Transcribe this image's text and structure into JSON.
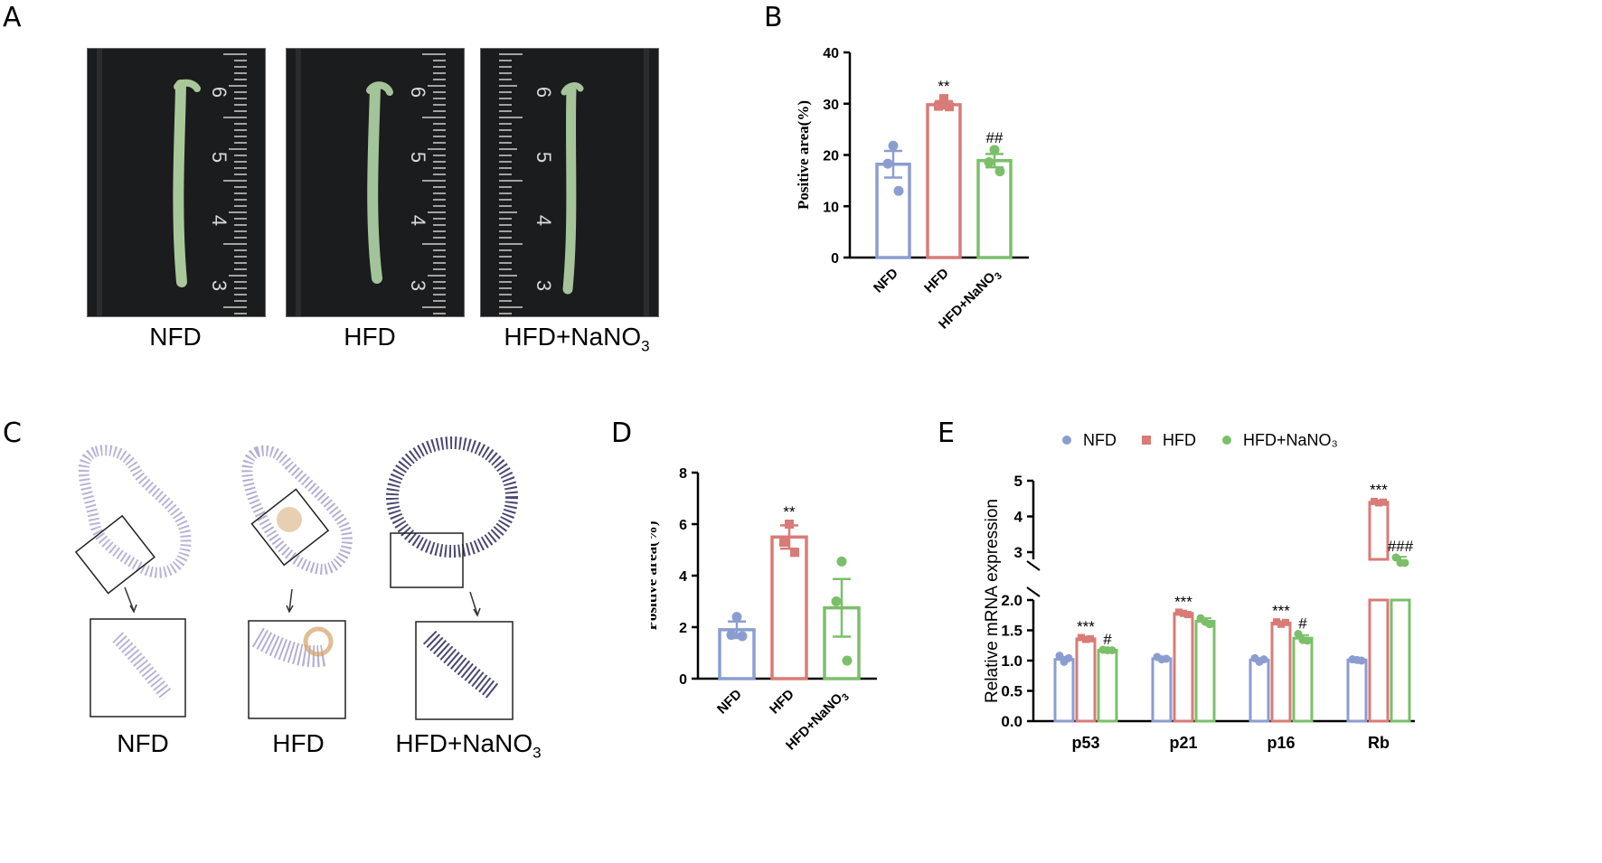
{
  "panels": {
    "a": "A",
    "b": "B",
    "c": "C",
    "d": "D",
    "e": "E"
  },
  "panel_a": {
    "groups": [
      "NFD",
      "HFD",
      "HFD+NaNO"
    ],
    "subscript": "3",
    "ruler_labels": [
      [
        "6",
        "5",
        "4",
        "3"
      ],
      [
        "6",
        "5",
        "4",
        "3"
      ],
      [
        "6",
        "5",
        "4",
        "3"
      ]
    ]
  },
  "panel_c": {
    "groups": [
      "NFD",
      "HFD",
      "HFD+NaNO"
    ],
    "subscript": "3"
  },
  "colors": {
    "NFD": "#8b9dd0",
    "HFD": "#d97b77",
    "HFD_NaNO3": "#7bbf6a"
  },
  "chart_data": [
    {
      "id": "B",
      "type": "bar",
      "categories": [
        "NFD",
        "HFD",
        "HFD+NaNO"
      ],
      "category_subscript": [
        "",
        "",
        "3"
      ],
      "values": [
        18.2,
        29.8,
        18.9
      ],
      "errors": [
        2.6,
        0.7,
        1.3
      ],
      "points": [
        [
          21.8,
          18.3,
          13.0
        ],
        [
          31.0,
          29.5,
          29.4
        ],
        [
          21.0,
          18.6,
          16.8
        ]
      ],
      "annotations": [
        "",
        "**",
        "##"
      ],
      "ylabel": "Positive area(%)",
      "ylim": [
        0,
        40
      ],
      "yticks": [
        0,
        10,
        20,
        30,
        40
      ]
    },
    {
      "id": "D",
      "type": "bar",
      "categories": [
        "NFD",
        "HFD",
        "HFD+NaNO"
      ],
      "category_subscript": [
        "",
        "",
        "3"
      ],
      "values": [
        1.9,
        5.5,
        2.75
      ],
      "errors": [
        0.32,
        0.45,
        1.12
      ],
      "points": [
        [
          2.4,
          1.7,
          1.65
        ],
        [
          6.0,
          5.3,
          4.9
        ],
        [
          4.55,
          3.0,
          0.7
        ]
      ],
      "annotations": [
        "",
        "**",
        ""
      ],
      "ylabel": "Positive area(%)",
      "ylim": [
        0,
        8
      ],
      "yticks": [
        0,
        2,
        4,
        6,
        8
      ]
    },
    {
      "id": "E",
      "type": "bar",
      "categories": [
        "p53",
        "p21",
        "p16",
        "Rb"
      ],
      "series": [
        {
          "name": "NFD",
          "values": [
            1.02,
            1.03,
            1.01,
            1.01
          ],
          "errors": [
            0.04,
            0.02,
            0.03,
            0.01
          ],
          "points": [
            [
              1.08,
              0.98,
              1.04
            ],
            [
              1.06,
              1.02,
              1.03
            ],
            [
              1.04,
              0.98,
              1.02
            ],
            [
              1.02,
              1.01,
              1.0
            ]
          ]
        },
        {
          "name": "HFD",
          "values": [
            1.36,
            1.78,
            1.62,
            4.4
          ],
          "errors": [
            0.03,
            0.02,
            0.03,
            0.05
          ],
          "points": [
            [
              1.38,
              1.35,
              1.36
            ],
            [
              1.8,
              1.78,
              1.76
            ],
            [
              1.64,
              1.6,
              1.63
            ],
            [
              4.42,
              4.38,
              4.4
            ]
          ]
        },
        {
          "name": "HFD+NaNO₃",
          "values": [
            1.17,
            1.65,
            1.37,
            2.75
          ],
          "errors": [
            0.01,
            0.05,
            0.05,
            0.12
          ],
          "points": [
            [
              1.18,
              1.17,
              1.17
            ],
            [
              1.7,
              1.64,
              1.6
            ],
            [
              1.44,
              1.34,
              1.33
            ],
            [
              2.85,
              2.7,
              2.7
            ]
          ]
        }
      ],
      "annotations": {
        "HFD": [
          "***",
          "***",
          "***",
          "***"
        ],
        "HFD+NaNO₃": [
          "#",
          "",
          "#",
          "###"
        ]
      },
      "ylabel": "Relative mRNA expression",
      "ylim": [
        0,
        5
      ],
      "axis_break": [
        2.0,
        2.6
      ],
      "yticks": [
        "0.0",
        "0.5",
        "1.0",
        "1.5",
        "2.0",
        "3",
        "4",
        "5"
      ],
      "legend": {
        "placement": "top",
        "entries": [
          "NFD",
          "HFD",
          "HFD+NaNO₃"
        ]
      }
    }
  ]
}
